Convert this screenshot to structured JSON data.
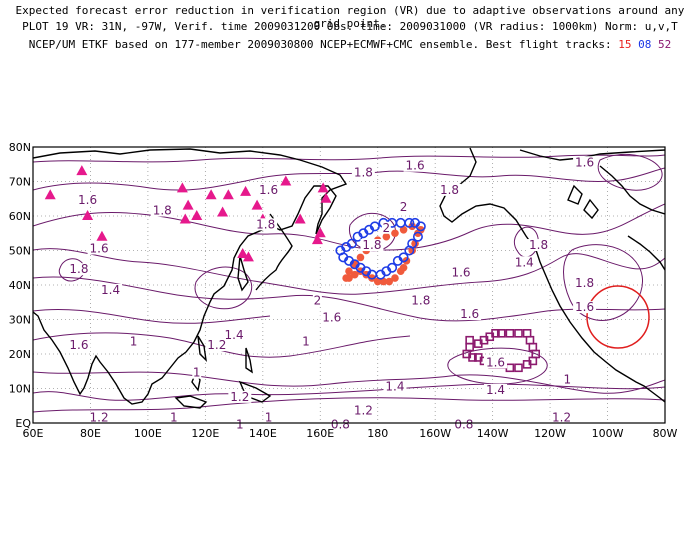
{
  "header": {
    "line1": "Expected forecast error reduction in verification region (VR) due to adaptive observations around any grid point.",
    "line2": "PLOT 19 VR: 31N, -97W, Verif. time 2009031200 Obs. time: 2009031000 (VR radius: 1000km) Norm: u,v,T",
    "line3_prefix": "NCEP/UM ETKF based on 177-member 2009030800 NCEP+ECMWF+CMC ensemble. Best flight tracks:",
    "track_a": "15",
    "track_b": "08",
    "track_c": "52"
  },
  "axes": {
    "lat_ticks": [
      "80N",
      "70N",
      "60N",
      "50N",
      "40N",
      "30N",
      "20N",
      "10N",
      "EQ"
    ],
    "lon_ticks": [
      "60E",
      "80E",
      "100E",
      "120E",
      "140E",
      "160E",
      "180",
      "160W",
      "140W",
      "120W",
      "100W",
      "80W"
    ]
  },
  "contour_labels": [
    {
      "text": "1.8",
      "lon": 175,
      "lat": 72
    },
    {
      "text": "1.6",
      "lon": 193,
      "lat": 74
    },
    {
      "text": "1.6",
      "lon": 79,
      "lat": 64
    },
    {
      "text": "1.8",
      "lon": 105,
      "lat": 61
    },
    {
      "text": "1.6",
      "lon": 142,
      "lat": 67
    },
    {
      "text": "1.8",
      "lon": 141,
      "lat": 57
    },
    {
      "text": "1.6",
      "lon": 252,
      "lat": 75
    },
    {
      "text": "1.6",
      "lon": 83,
      "lat": 50
    },
    {
      "text": "1.8",
      "lon": 76,
      "lat": 44
    },
    {
      "text": "2",
      "lon": 183,
      "lat": 56
    },
    {
      "text": "2",
      "lon": 189,
      "lat": 62
    },
    {
      "text": "1.8",
      "lon": 178,
      "lat": 51
    },
    {
      "text": "1.8",
      "lon": 205,
      "lat": 67
    },
    {
      "text": "1.8",
      "lon": 236,
      "lat": 51
    },
    {
      "text": "1.6",
      "lon": 209,
      "lat": 43
    },
    {
      "text": "1.4",
      "lon": 231,
      "lat": 46
    },
    {
      "text": "1.8",
      "lon": 252,
      "lat": 40
    },
    {
      "text": "1.6",
      "lon": 252,
      "lat": 33
    },
    {
      "text": "1.4",
      "lon": 87,
      "lat": 38
    },
    {
      "text": "2",
      "lon": 159,
      "lat": 35
    },
    {
      "text": "1.8",
      "lon": 195,
      "lat": 35
    },
    {
      "text": "1.6",
      "lon": 164,
      "lat": 30
    },
    {
      "text": "1.6",
      "lon": 212,
      "lat": 31
    },
    {
      "text": "1.6",
      "lon": 76,
      "lat": 22
    },
    {
      "text": "1",
      "lon": 95,
      "lat": 23
    },
    {
      "text": "1.4",
      "lon": 130,
      "lat": 25
    },
    {
      "text": "1.2",
      "lon": 124,
      "lat": 22
    },
    {
      "text": "1",
      "lon": 155,
      "lat": 23
    },
    {
      "text": "1.6",
      "lon": 221,
      "lat": 17
    },
    {
      "text": "1",
      "lon": 117,
      "lat": 14
    },
    {
      "text": "1.4",
      "lon": 186,
      "lat": 10
    },
    {
      "text": "1.2",
      "lon": 132,
      "lat": 7
    },
    {
      "text": "1.4",
      "lon": 221,
      "lat": 9
    },
    {
      "text": "1.2",
      "lon": 175,
      "lat": 3
    },
    {
      "text": "1.2",
      "lon": 83,
      "lat": 1
    },
    {
      "text": "1",
      "lon": 109,
      "lat": 1
    },
    {
      "text": "1",
      "lon": 132,
      "lat": -1
    },
    {
      "text": "1",
      "lon": 142,
      "lat": 1
    },
    {
      "text": "0.8",
      "lon": 167,
      "lat": -1
    },
    {
      "text": "0.8",
      "lon": 210,
      "lat": -1
    },
    {
      "text": "1.2",
      "lon": 244,
      "lat": 1
    },
    {
      "text": "1",
      "lon": 246,
      "lat": 12
    }
  ],
  "colors": {
    "contour": "#6a1a6a",
    "track15": "#f05a3c",
    "track08": "#1e3ce6",
    "track52": "#8c1a6e",
    "triangle": "#e6198c",
    "vr_circle": "#e01e1e",
    "grid": "#999999"
  }
}
